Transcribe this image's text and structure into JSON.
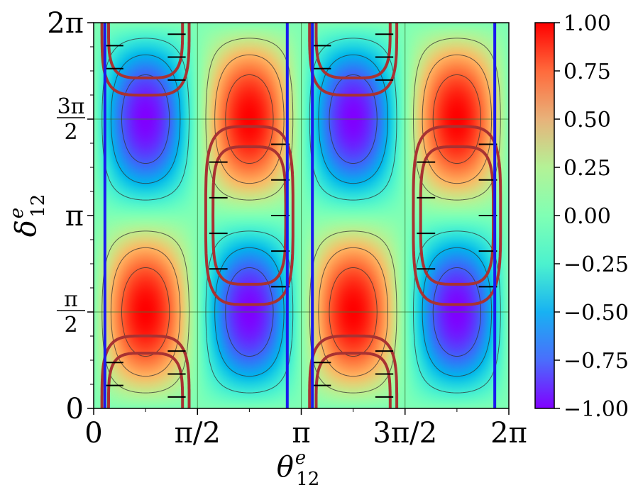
{
  "chart_data": {
    "type": "heatmap",
    "title": "",
    "function": "sin(2*theta12) * sin(delta12)",
    "xlabel": {
      "main": "θ",
      "sup": "e",
      "sub": "12"
    },
    "ylabel": {
      "main": "δ",
      "sup": "e",
      "sub": "12"
    },
    "xlim": [
      0,
      6.2832
    ],
    "ylim": [
      0,
      6.2832
    ],
    "x_ticks": [
      {
        "value": 0,
        "label": "0"
      },
      {
        "value": 1.5708,
        "label": "π/2"
      },
      {
        "value": 3.1416,
        "label": "π"
      },
      {
        "value": 4.7124,
        "label": "3π/2"
      },
      {
        "value": 6.2832,
        "label": "2π"
      }
    ],
    "y_ticks": [
      {
        "value": 0,
        "label": "0",
        "num": "",
        "den": ""
      },
      {
        "value": 1.5708,
        "label": "π/2",
        "num": "π",
        "den": "2"
      },
      {
        "value": 3.1416,
        "label": "π",
        "num": "",
        "den": ""
      },
      {
        "value": 4.7124,
        "label": "3π/2",
        "num": "3π",
        "den": "2"
      },
      {
        "value": 6.2832,
        "label": "2π",
        "num": "",
        "den": ""
      }
    ],
    "grid_lines": {
      "x": [
        1.5708,
        3.1416,
        4.7124
      ],
      "y": [
        1.5708,
        4.7124
      ]
    },
    "contour_levels": [
      -0.75,
      -0.5,
      -0.25,
      0.25,
      0.5,
      0.75
    ],
    "vertical_markers": [
      0.17,
      2.93,
      3.31,
      6.07
    ],
    "colorbar": {
      "range": [
        -1.0,
        1.0
      ],
      "ticks": [
        "1.00",
        "0.75",
        "0.50",
        "0.25",
        "0.00",
        "−0.25",
        "−0.50",
        "−0.75",
        "−1.00"
      ],
      "colormap": "rainbow"
    },
    "colors": {
      "marker": "#1a1aee",
      "region": "#a83232",
      "hatch": "#000000",
      "contour": "#333333",
      "grid": "#3a7a3a"
    },
    "regions": [
      {
        "center": [
          0.785,
          6.283
        ],
        "radii": [
          [
            0.66,
            1.18
          ],
          [
            0.56,
            0.9
          ]
        ],
        "half": "bottom"
      },
      {
        "center": [
          3.927,
          6.283
        ],
        "radii": [
          [
            0.66,
            1.18
          ],
          [
            0.56,
            0.9
          ]
        ],
        "half": "bottom"
      },
      {
        "center": [
          0.785,
          0.0
        ],
        "radii": [
          [
            0.66,
            1.18
          ],
          [
            0.56,
            0.9
          ]
        ],
        "half": "top"
      },
      {
        "center": [
          3.927,
          0.0
        ],
        "radii": [
          [
            0.66,
            1.18
          ],
          [
            0.56,
            0.9
          ]
        ],
        "half": "top"
      },
      {
        "center": [
          2.356,
          3.142
        ],
        "radii": [
          [
            0.66,
            1.45
          ],
          [
            0.55,
            1.12
          ]
        ],
        "half": "full"
      },
      {
        "center": [
          5.498,
          3.142
        ],
        "radii": [
          [
            0.66,
            1.45
          ],
          [
            0.55,
            1.12
          ]
        ],
        "half": "full"
      }
    ]
  }
}
